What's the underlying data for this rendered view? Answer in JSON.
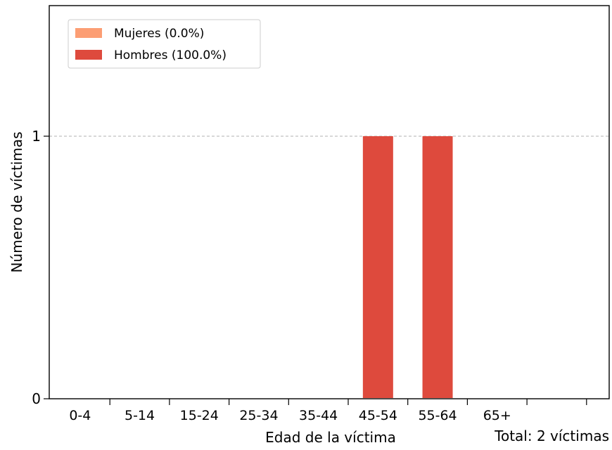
{
  "chart_data": {
    "type": "bar",
    "stacked": true,
    "categories": [
      "0-4",
      "5-14",
      "15-24",
      "25-34",
      "35-44",
      "45-54",
      "55-64",
      "65+"
    ],
    "series": [
      {
        "name": "Mujeres (0.0%)",
        "color": "#fc9e74",
        "values": [
          0,
          0,
          0,
          0,
          0,
          0,
          0,
          0
        ]
      },
      {
        "name": "Hombres (100.0%)",
        "color": "#de4a3d",
        "values": [
          0,
          0,
          0,
          0,
          0,
          1,
          1,
          0
        ]
      }
    ],
    "xlabel": "Edad de la víctima",
    "ylabel": "Número de víctimas",
    "yticks": [
      0,
      1
    ],
    "ylim": [
      0,
      1.5
    ],
    "grid": "horizontal dashed at y=1",
    "legend_position": "top-left",
    "annotation": "Total: 2 víctimas"
  }
}
